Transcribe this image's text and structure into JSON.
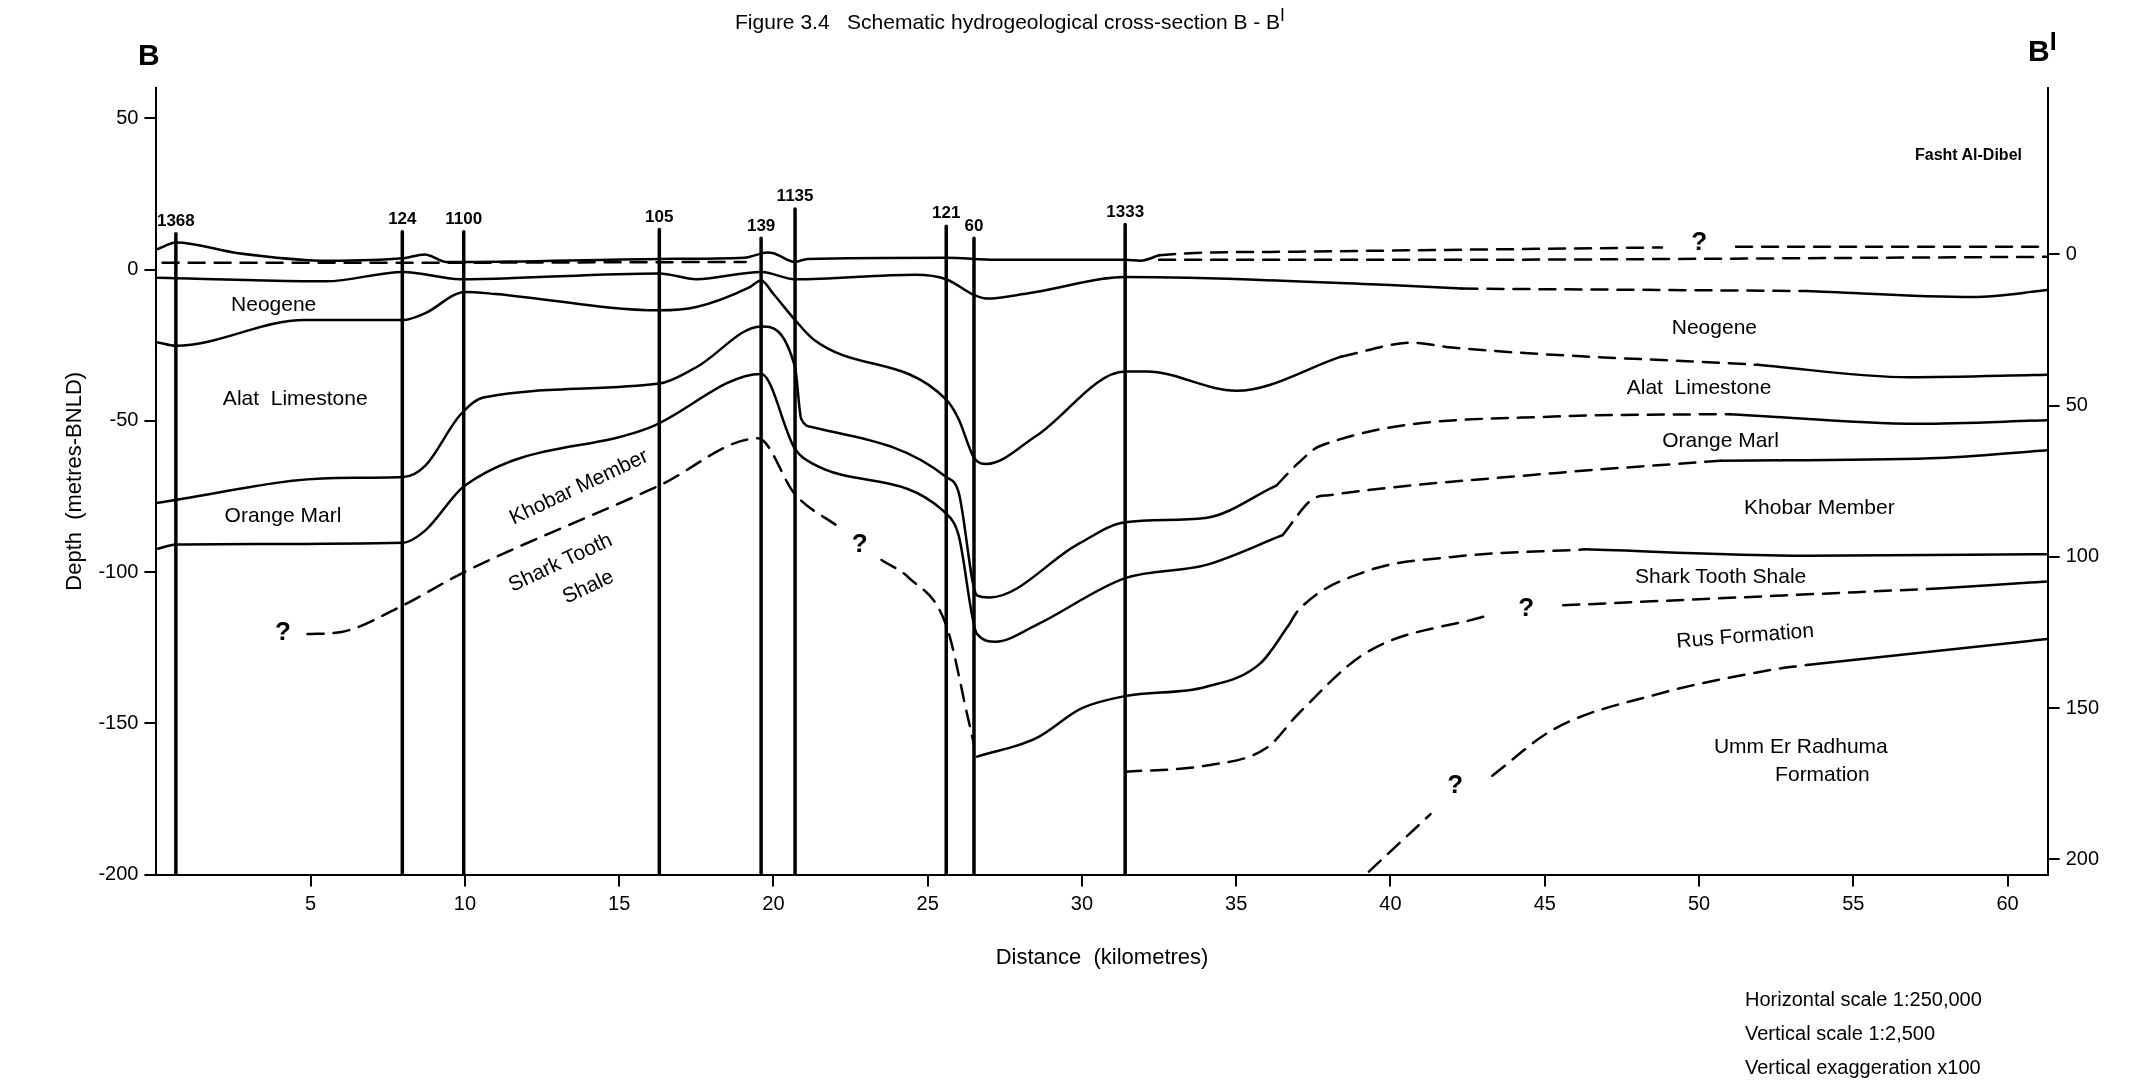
{
  "chart_data": {
    "type": "line",
    "title": "Figure 3.4   Schematic hydrogeological cross-section B - B$^{I}$",
    "xlabel": "Distance  (kilometres)",
    "ylabel": "Depth  (metres-BNLD)",
    "xlim": [
      0,
      61.3
    ],
    "xticks": [
      5,
      10,
      15,
      20,
      25,
      30,
      35,
      40,
      45,
      50,
      55,
      60
    ],
    "ylim": [
      -200,
      60
    ],
    "yticks": [
      50,
      0,
      -50,
      -100,
      -150,
      -200
    ],
    "y2lim": [
      205,
      -55
    ],
    "y2ticks": [
      0,
      50,
      100,
      150,
      200
    ],
    "marker": "none",
    "series": [
      {
        "color": "#000000",
        "line_style": "solid",
        "x": [
          0.05,
          0.63,
          2.65,
          5.53,
          7.97,
          8.7,
          9.4,
          10,
          16.33,
          19.06,
          19.8,
          20,
          20.7,
          21.1,
          25.6,
          27.2,
          31.4,
          31.9,
          32.5
        ],
        "values": [
          6.8,
          8.9,
          5.4,
          2.9,
          3.7,
          5,
          2.5,
          2.5,
          3.5,
          3.9,
          5.6,
          5.4,
          2.5,
          3.5,
          3.9,
          3.2,
          3.2,
          2.9,
          4.7
        ]
      },
      {
        "color": "#000000",
        "line_style": "dashed",
        "x": [
          32.5,
          33.5,
          37,
          48.8
        ],
        "values": [
          4.7,
          5.4,
          5.9,
          7.3
        ]
      },
      {
        "color": "#000000",
        "line_style": "dashed",
        "x": [
          51.2,
          61.3
        ],
        "values": [
          7.5,
          7.5
        ]
      },
      {
        "color": "#000000",
        "line_style": "dashed",
        "x": [
          32.5,
          40.3,
          61.3
        ],
        "values": [
          3.2,
          3.2,
          4.2
        ]
      },
      {
        "color": "#000000",
        "line_style": "dashed",
        "x": [
          0.2,
          5.5,
          19.1
        ],
        "values": [
          2.2,
          2.2,
          2.5
        ]
      },
      {
        "color": "#000000",
        "line_style": "solid",
        "x": [
          0.05,
          5.5,
          8,
          9.85,
          16.3,
          17.5,
          19.6,
          20.7,
          24.6,
          25.6,
          26.5,
          26.9,
          28.5,
          31.4,
          40.3,
          42.3
        ],
        "values": [
          -2.7,
          -3.9,
          -0.8,
          -3.2,
          -1.3,
          -3.2,
          -0.8,
          -3.2,
          -1.7,
          -3.2,
          -8.4,
          -9.6,
          -7.4,
          -2.5,
          -5.3,
          -6.3
        ]
      },
      {
        "color": "#000000",
        "line_style": "dashed",
        "x": [
          42.3,
          53.5
        ],
        "values": [
          -6.3,
          -7.1
        ]
      },
      {
        "color": "#000000",
        "line_style": "solid",
        "x": [
          53.5,
          58.9,
          61.3
        ],
        "values": [
          -7.1,
          -9.1,
          -6.8
        ]
      },
      {
        "color": "#000000",
        "line_style": "solid",
        "x": [
          0.05,
          0.63,
          4.8,
          8,
          8.7,
          10,
          11,
          16.3,
          17.5,
          19.2,
          19.6,
          20,
          20.7,
          21.3,
          25.6,
          26,
          26.5,
          26.9,
          28.5,
          31.4,
          32.1,
          35,
          38.4
        ],
        "values": [
          -24.1,
          -25.2,
          -16.7,
          -16.7,
          -14.5,
          -7.4,
          -8.1,
          -13.5,
          -12.4,
          -6,
          -3.6,
          -8.1,
          -16.7,
          -23.1,
          -43,
          -49.4,
          -62.2,
          -64.3,
          -55.1,
          -33.7,
          -33.7,
          -40.1,
          -28.8
        ]
      },
      {
        "color": "#000000",
        "line_style": "dashed",
        "x": [
          38.4,
          40.7,
          42,
          51.9
        ],
        "values": [
          -28.8,
          -24.2,
          -25.8,
          -31.5
        ]
      },
      {
        "color": "#000000",
        "line_style": "solid",
        "x": [
          51.9,
          56.8,
          61.3
        ],
        "values": [
          -31.5,
          -35.6,
          -34.8
        ]
      },
      {
        "color": "#000000",
        "line_style": "solid",
        "x": [
          0.05,
          5.8,
          8,
          8.7,
          9.85,
          10.6,
          16.3,
          17.5,
          19.6,
          20.7,
          20.9,
          21.3,
          25.6,
          26,
          26.6,
          27,
          29.9,
          31.4,
          34,
          36.3
        ],
        "values": [
          -77.1,
          -68.9,
          -68.6,
          -65,
          -48,
          -42.3,
          -37.7,
          -32.3,
          -18.8,
          -32.3,
          -49.4,
          -52.2,
          -68.6,
          -73.6,
          -107.7,
          -108.4,
          -90.6,
          -83.5,
          -82.1,
          -71.4
        ]
      },
      {
        "color": "#000000",
        "line_style": "dashed",
        "x": [
          36.3,
          37,
          37.7,
          45.3,
          51
        ],
        "values": [
          -71.4,
          -64.1,
          -58.4,
          -48.6,
          -47.8
        ]
      },
      {
        "color": "#000000",
        "line_style": "solid",
        "x": [
          51,
          57.1,
          61.3
        ],
        "values": [
          -47.8,
          -51,
          -49.8
        ]
      },
      {
        "color": "#000000",
        "line_style": "solid",
        "x": [
          0.05,
          0.63,
          8,
          8.7,
          10,
          16,
          19.6,
          20.7,
          21.3,
          25.6,
          26,
          26.6,
          27.2,
          28.5,
          31.4,
          34,
          36.5
        ],
        "values": [
          -92.3,
          -90.9,
          -90.3,
          -86.4,
          -71.4,
          -52.2,
          -34.5,
          -59.3,
          -64.3,
          -80.7,
          -87.8,
          -120.5,
          -123,
          -117.6,
          -102,
          -97.7,
          -87.8
        ]
      },
      {
        "color": "#000000",
        "line_style": "dashed",
        "x": [
          36.5,
          37.5,
          38,
          45.3,
          50.7
        ],
        "values": [
          -87.8,
          -75.7,
          -74.6,
          -67.3,
          -63.2
        ]
      },
      {
        "color": "#000000",
        "line_style": "solid",
        "x": [
          50.7,
          57.5,
          61.3
        ],
        "values": [
          -63.2,
          -62.4,
          -59.7
        ]
      },
      {
        "color": "#000000",
        "line_style": "dashed",
        "x": [
          4.9,
          6,
          7.8,
          10,
          16.3,
          19.5,
          20.7,
          22.1
        ],
        "values": [
          -120.5,
          -119.8,
          -112,
          -99.9,
          -71.4,
          -55.8,
          -74.3,
          -85
        ]
      },
      {
        "color": "#000000",
        "line_style": "dashed",
        "x": [
          23.5,
          24.4,
          25.6,
          26.3,
          26.5
        ],
        "values": [
          -96,
          -102,
          -117.6,
          -148,
          -157
        ]
      },
      {
        "color": "#000000",
        "line_style": "solid",
        "x": [
          26.6,
          28.5,
          30,
          31.4,
          34,
          35.8,
          36.7
        ],
        "values": [
          -161,
          -155,
          -145,
          -141,
          -138,
          -130,
          -117.6
        ]
      },
      {
        "color": "#000000",
        "line_style": "dashed",
        "x": [
          36.7,
          37,
          39.2,
          42,
          46.3
        ],
        "values": [
          -117.6,
          -112.8,
          -99.8,
          -95,
          -92.5
        ]
      },
      {
        "color": "#000000",
        "line_style": "solid",
        "x": [
          46.3,
          53.5,
          61.3
        ],
        "values": [
          -92.5,
          -94.6,
          -94.1
        ]
      },
      {
        "color": "#000000",
        "line_style": "dashed",
        "x": [
          31.4,
          34,
          36,
          37,
          39.2,
          43.1
        ],
        "values": [
          -166,
          -164,
          -158,
          -147,
          -126.7,
          -114.5
        ]
      },
      {
        "color": "#000000",
        "line_style": "dashed",
        "x": [
          45.6,
          57.6
        ],
        "values": [
          -111,
          -105.5
        ]
      },
      {
        "color": "#000000",
        "line_style": "solid",
        "x": [
          57.6,
          61.3
        ],
        "values": [
          -105.5,
          -103.1
        ]
      },
      {
        "color": "#000000",
        "line_style": "dashed",
        "x": [
          39.3,
          41.3
        ],
        "values": [
          -199,
          -180
        ]
      },
      {
        "color": "#000000",
        "line_style": "dashed",
        "x": [
          43.3,
          45.3,
          48.6,
          52.3,
          53.5
        ],
        "values": [
          -167.3,
          -151.9,
          -140.5,
          -132.4,
          -130.7
        ]
      },
      {
        "color": "#000000",
        "line_style": "solid",
        "x": [
          53.5,
          61.3
        ],
        "values": [
          -130.7,
          -122.1
        ]
      },
      {
        "name": "1368",
        "color": "#000000",
        "line_style": "solid",
        "x": [
          0.63,
          0.63
        ],
        "values": [
          11.8,
          -200
        ]
      },
      {
        "name": "124",
        "color": "#000000",
        "line_style": "solid",
        "x": [
          7.97,
          7.97
        ],
        "values": [
          12.5,
          -200
        ]
      },
      {
        "name": "1100",
        "color": "#000000",
        "line_style": "solid",
        "x": [
          9.96,
          9.96
        ],
        "values": [
          12.5,
          -200
        ]
      },
      {
        "name": "105",
        "color": "#000000",
        "line_style": "solid",
        "x": [
          16.3,
          16.3
        ],
        "values": [
          13.2,
          -200
        ]
      },
      {
        "name": "139",
        "color": "#000000",
        "line_style": "solid",
        "x": [
          19.6,
          19.6
        ],
        "values": [
          10.3,
          -200
        ]
      },
      {
        "name": "1135",
        "color": "#000000",
        "line_style": "solid",
        "x": [
          20.7,
          20.7
        ],
        "values": [
          20,
          -200
        ]
      },
      {
        "name": "121",
        "color": "#000000",
        "line_style": "solid",
        "x": [
          25.6,
          25.6
        ],
        "values": [
          14.3,
          -200
        ]
      },
      {
        "name": "60",
        "color": "#000000",
        "line_style": "solid",
        "x": [
          26.5,
          26.5
        ],
        "values": [
          10.3,
          -200
        ]
      },
      {
        "name": "1333",
        "color": "#000000",
        "line_style": "solid",
        "x": [
          31.4,
          31.4
        ],
        "values": [
          14.9,
          -200
        ]
      }
    ],
    "annotations": [
      "B",
      "B$^{I}$",
      "Fasht Al-Dibel",
      "Horizontal scale 1:250,000",
      "Vertical scale 1:2,500",
      "Vertical exaggeration x100",
      "?",
      "Neogene",
      "Alat  Limestone",
      "Orange Marl",
      "Khobar Member",
      "Shark Tooth",
      "Shale",
      "?",
      "?",
      "Neogene",
      "Alat  Limestone",
      "Orange Marl",
      "Khobar Member",
      "Shark Tooth Shale",
      "?",
      "Rus Formation",
      "?",
      "Umm Er Radhuma",
      "Formation"
    ]
  }
}
